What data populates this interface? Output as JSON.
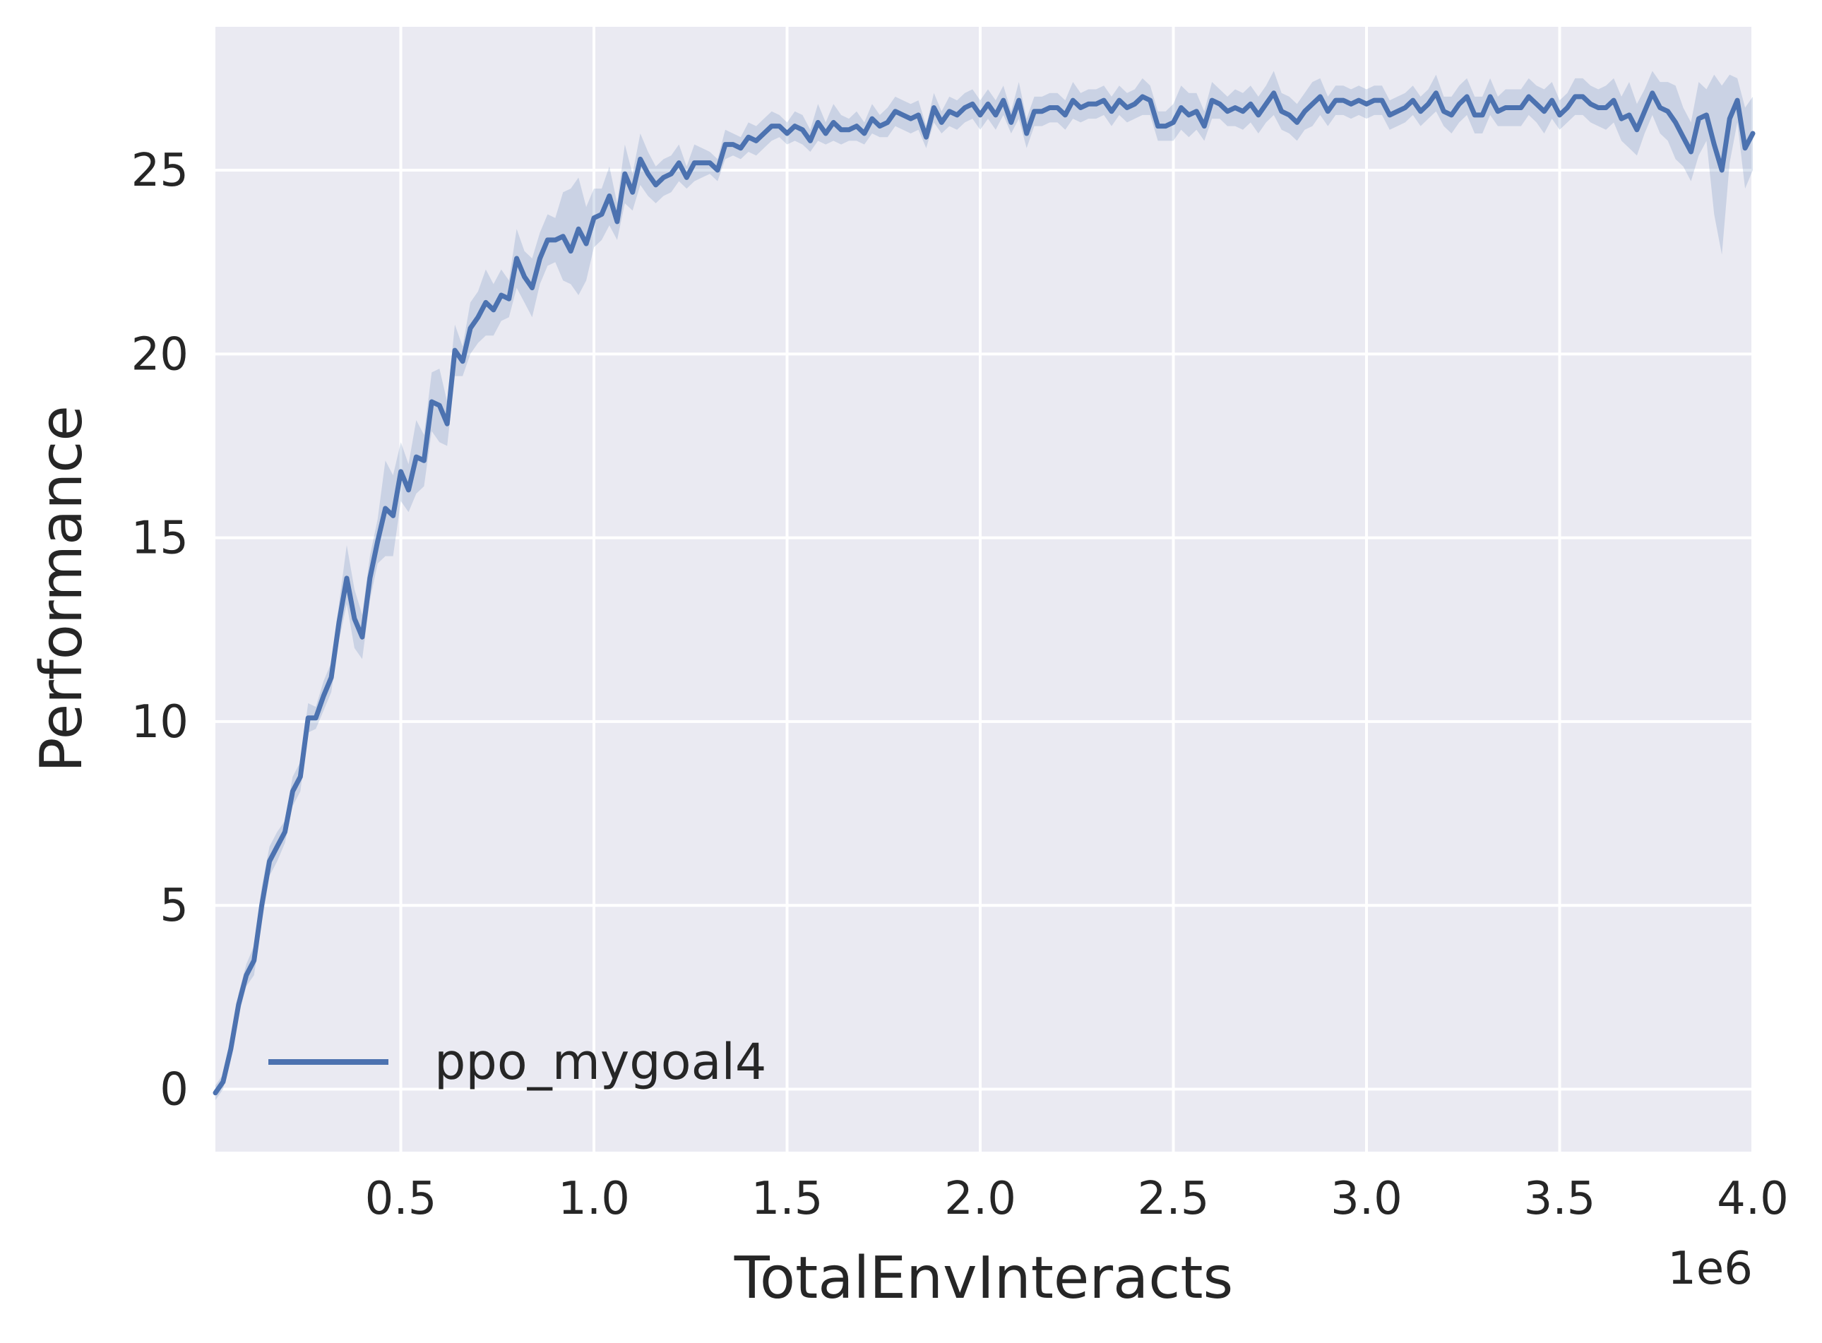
{
  "chart_data": {
    "type": "line",
    "xlabel": "TotalEnvInteracts",
    "ylabel": "Performance",
    "x_offset_text": "1e6",
    "xlim": [
      0.02,
      4.0
    ],
    "ylim": [
      -1.7,
      28.9
    ],
    "xticks": [
      0.5,
      1.0,
      1.5,
      2.0,
      2.5,
      3.0,
      3.5,
      4.0
    ],
    "xtick_labels": [
      "0.5",
      "1.0",
      "1.5",
      "2.0",
      "2.5",
      "3.0",
      "3.5",
      "4.0"
    ],
    "yticks": [
      0,
      5,
      10,
      15,
      20,
      25
    ],
    "ytick_labels": [
      "0",
      "5",
      "10",
      "15",
      "20",
      "25"
    ],
    "grid": true,
    "legend_position": "lower-left",
    "colors": {
      "line": "#4c72b0",
      "band": "#4c72b0",
      "plot_bg": "#eaeaf2",
      "grid": "#ffffff"
    },
    "series": [
      {
        "name": "ppo_mygoal4",
        "x": [
          0.02,
          0.04,
          0.06,
          0.08,
          0.1,
          0.12,
          0.14,
          0.16,
          0.18,
          0.2,
          0.22,
          0.24,
          0.26,
          0.28,
          0.3,
          0.32,
          0.34,
          0.36,
          0.38,
          0.4,
          0.42,
          0.44,
          0.46,
          0.48,
          0.5,
          0.52,
          0.54,
          0.56,
          0.58,
          0.6,
          0.62,
          0.64,
          0.66,
          0.68,
          0.7,
          0.72,
          0.74,
          0.76,
          0.78,
          0.8,
          0.82,
          0.84,
          0.86,
          0.88,
          0.9,
          0.92,
          0.94,
          0.96,
          0.98,
          1.0,
          1.02,
          1.04,
          1.06,
          1.08,
          1.1,
          1.12,
          1.14,
          1.16,
          1.18,
          1.2,
          1.22,
          1.24,
          1.26,
          1.28,
          1.3,
          1.32,
          1.34,
          1.36,
          1.38,
          1.4,
          1.42,
          1.44,
          1.46,
          1.48,
          1.5,
          1.52,
          1.54,
          1.56,
          1.58,
          1.6,
          1.62,
          1.64,
          1.66,
          1.68,
          1.7,
          1.72,
          1.74,
          1.76,
          1.78,
          1.8,
          1.82,
          1.84,
          1.86,
          1.88,
          1.9,
          1.92,
          1.94,
          1.96,
          1.98,
          2.0,
          2.02,
          2.04,
          2.06,
          2.08,
          2.1,
          2.12,
          2.14,
          2.16,
          2.18,
          2.2,
          2.22,
          2.24,
          2.26,
          2.28,
          2.3,
          2.32,
          2.34,
          2.36,
          2.38,
          2.4,
          2.42,
          2.44,
          2.46,
          2.48,
          2.5,
          2.52,
          2.54,
          2.56,
          2.58,
          2.6,
          2.62,
          2.64,
          2.66,
          2.68,
          2.7,
          2.72,
          2.74,
          2.76,
          2.78,
          2.8,
          2.82,
          2.84,
          2.86,
          2.88,
          2.9,
          2.92,
          2.94,
          2.96,
          2.98,
          3.0,
          3.02,
          3.04,
          3.06,
          3.08,
          3.1,
          3.12,
          3.14,
          3.16,
          3.18,
          3.2,
          3.22,
          3.24,
          3.26,
          3.28,
          3.3,
          3.32,
          3.34,
          3.36,
          3.38,
          3.4,
          3.42,
          3.44,
          3.46,
          3.48,
          3.5,
          3.52,
          3.54,
          3.56,
          3.58,
          3.6,
          3.62,
          3.64,
          3.66,
          3.68,
          3.7,
          3.72,
          3.74,
          3.76,
          3.78,
          3.8,
          3.82,
          3.84,
          3.86,
          3.88,
          3.9,
          3.92,
          3.94,
          3.96,
          3.98,
          4.0
        ],
        "y": [
          -0.1,
          0.2,
          1.1,
          2.3,
          3.1,
          3.5,
          5.0,
          6.2,
          6.6,
          7.0,
          8.1,
          8.5,
          10.1,
          10.1,
          10.7,
          11.2,
          12.7,
          13.9,
          12.8,
          12.3,
          13.9,
          14.9,
          15.8,
          15.6,
          16.8,
          16.3,
          17.2,
          17.1,
          18.7,
          18.6,
          18.1,
          20.1,
          19.8,
          20.7,
          21.0,
          21.4,
          21.2,
          21.6,
          21.5,
          22.6,
          22.1,
          21.8,
          22.6,
          23.1,
          23.1,
          23.2,
          22.8,
          23.4,
          23.0,
          23.7,
          23.8,
          24.3,
          23.6,
          24.9,
          24.4,
          25.3,
          24.9,
          24.6,
          24.8,
          24.9,
          25.2,
          24.8,
          25.2,
          25.2,
          25.2,
          25.0,
          25.7,
          25.7,
          25.6,
          25.9,
          25.8,
          26.0,
          26.2,
          26.2,
          26.0,
          26.2,
          26.1,
          25.8,
          26.3,
          26.0,
          26.3,
          26.1,
          26.1,
          26.2,
          26.0,
          26.4,
          26.2,
          26.3,
          26.6,
          26.5,
          26.4,
          26.5,
          25.9,
          26.7,
          26.3,
          26.6,
          26.5,
          26.7,
          26.8,
          26.5,
          26.8,
          26.5,
          26.9,
          26.3,
          26.9,
          26.0,
          26.6,
          26.6,
          26.7,
          26.7,
          26.5,
          26.9,
          26.7,
          26.8,
          26.8,
          26.9,
          26.6,
          26.9,
          26.7,
          26.8,
          27.0,
          26.9,
          26.2,
          26.2,
          26.3,
          26.7,
          26.5,
          26.6,
          26.2,
          26.9,
          26.8,
          26.6,
          26.7,
          26.6,
          26.8,
          26.5,
          26.8,
          27.1,
          26.6,
          26.5,
          26.3,
          26.6,
          26.8,
          27.0,
          26.6,
          26.9,
          26.9,
          26.8,
          26.9,
          26.8,
          26.9,
          26.9,
          26.5,
          26.6,
          26.7,
          26.9,
          26.6,
          26.8,
          27.1,
          26.6,
          26.5,
          26.8,
          27.0,
          26.5,
          26.5,
          27.0,
          26.6,
          26.7,
          26.7,
          26.7,
          27.0,
          26.8,
          26.6,
          26.9,
          26.5,
          26.7,
          27.0,
          27.0,
          26.8,
          26.7,
          26.7,
          26.9,
          26.4,
          26.5,
          26.1,
          26.6,
          27.1,
          26.7,
          26.6,
          26.3,
          25.9,
          25.5,
          26.4,
          26.5,
          25.7,
          25.0,
          26.4,
          26.9,
          25.6,
          26.0
        ],
        "y_lower": [
          -0.3,
          0.0,
          0.9,
          2.0,
          2.8,
          3.1,
          4.5,
          5.8,
          6.2,
          6.7,
          7.7,
          8.1,
          9.7,
          9.8,
          10.3,
          10.8,
          12.2,
          13.2,
          12.0,
          11.7,
          13.3,
          14.3,
          14.5,
          14.5,
          16.0,
          15.7,
          16.2,
          16.4,
          17.9,
          17.6,
          17.5,
          19.4,
          19.4,
          20.0,
          20.3,
          20.5,
          20.5,
          20.9,
          21.0,
          21.8,
          21.4,
          21.0,
          21.9,
          22.4,
          22.5,
          22.0,
          21.9,
          21.6,
          22.0,
          22.9,
          23.1,
          23.5,
          23.1,
          24.1,
          23.9,
          24.6,
          24.3,
          24.1,
          24.3,
          24.4,
          24.7,
          24.5,
          24.7,
          24.8,
          24.9,
          24.7,
          25.3,
          25.4,
          25.3,
          25.5,
          25.4,
          25.6,
          25.8,
          25.9,
          25.7,
          25.8,
          25.7,
          25.5,
          25.8,
          25.7,
          25.8,
          25.7,
          25.8,
          25.8,
          25.7,
          26.0,
          25.9,
          25.9,
          26.2,
          26.1,
          26.0,
          26.1,
          25.6,
          26.3,
          26.0,
          26.2,
          26.1,
          26.3,
          26.4,
          26.1,
          26.4,
          26.1,
          26.5,
          26.0,
          26.4,
          25.6,
          26.2,
          26.2,
          26.3,
          26.3,
          26.1,
          26.4,
          26.3,
          26.4,
          26.4,
          26.5,
          26.2,
          26.5,
          26.3,
          26.4,
          26.5,
          26.5,
          25.8,
          25.8,
          25.8,
          26.1,
          25.9,
          26.1,
          25.8,
          26.4,
          26.4,
          26.2,
          26.2,
          26.1,
          26.3,
          26.0,
          26.3,
          26.5,
          26.1,
          26.0,
          25.8,
          26.1,
          26.2,
          26.5,
          26.2,
          26.5,
          26.5,
          26.4,
          26.5,
          26.4,
          26.5,
          26.5,
          26.1,
          26.2,
          26.3,
          26.5,
          26.2,
          26.4,
          26.6,
          26.2,
          26.0,
          26.3,
          26.5,
          26.0,
          26.0,
          26.5,
          26.2,
          26.2,
          26.2,
          26.2,
          26.5,
          26.3,
          26.0,
          26.4,
          26.1,
          26.3,
          26.5,
          26.5,
          26.3,
          26.2,
          26.1,
          26.3,
          25.8,
          25.6,
          25.4,
          26.0,
          26.5,
          26.0,
          25.8,
          25.3,
          25.1,
          24.7,
          25.4,
          25.8,
          23.8,
          22.7,
          25.2,
          26.3,
          24.5,
          25.0
        ],
        "y_upper": [
          0.1,
          0.4,
          1.3,
          2.6,
          3.4,
          3.9,
          5.5,
          6.6,
          7.0,
          7.3,
          8.5,
          8.9,
          10.5,
          10.4,
          11.1,
          11.6,
          13.2,
          14.8,
          13.6,
          12.9,
          14.5,
          15.5,
          17.1,
          16.7,
          17.6,
          17.0,
          18.2,
          17.8,
          19.5,
          19.6,
          18.7,
          20.8,
          20.2,
          21.4,
          21.7,
          22.3,
          21.9,
          22.3,
          22.0,
          23.4,
          22.8,
          22.6,
          23.3,
          23.8,
          23.7,
          24.4,
          24.5,
          24.8,
          24.0,
          24.5,
          24.5,
          25.1,
          24.1,
          25.7,
          24.9,
          26.0,
          25.5,
          25.1,
          25.3,
          25.4,
          25.7,
          25.1,
          25.7,
          25.6,
          25.5,
          25.3,
          26.1,
          26.0,
          25.9,
          26.3,
          26.2,
          26.4,
          26.6,
          26.5,
          26.3,
          26.6,
          26.5,
          26.1,
          26.8,
          26.3,
          26.8,
          26.5,
          26.4,
          26.6,
          26.3,
          26.8,
          26.5,
          26.7,
          27.0,
          26.9,
          26.8,
          26.9,
          26.2,
          27.1,
          26.6,
          27.0,
          26.9,
          27.1,
          27.2,
          26.9,
          27.2,
          26.9,
          27.3,
          26.6,
          27.4,
          26.4,
          27.0,
          27.0,
          27.1,
          27.1,
          26.9,
          27.4,
          27.1,
          27.2,
          27.2,
          27.3,
          27.0,
          27.3,
          27.1,
          27.2,
          27.5,
          27.3,
          26.6,
          26.6,
          26.8,
          27.3,
          27.1,
          27.1,
          26.6,
          27.4,
          27.2,
          27.0,
          27.2,
          27.1,
          27.3,
          27.0,
          27.3,
          27.7,
          27.1,
          27.0,
          26.8,
          27.1,
          27.4,
          27.5,
          27.0,
          27.3,
          27.3,
          27.2,
          27.3,
          27.2,
          27.3,
          27.3,
          26.9,
          27.0,
          27.1,
          27.3,
          27.0,
          27.2,
          27.6,
          27.0,
          27.0,
          27.3,
          27.5,
          27.0,
          27.0,
          27.5,
          27.0,
          27.2,
          27.2,
          27.2,
          27.5,
          27.3,
          27.2,
          27.4,
          26.9,
          27.1,
          27.5,
          27.5,
          27.3,
          27.2,
          27.3,
          27.5,
          27.0,
          27.4,
          26.8,
          27.2,
          27.7,
          27.4,
          27.4,
          27.3,
          26.7,
          26.3,
          27.4,
          27.2,
          27.6,
          27.3,
          27.6,
          27.5,
          26.7,
          27.0
        ]
      }
    ]
  }
}
